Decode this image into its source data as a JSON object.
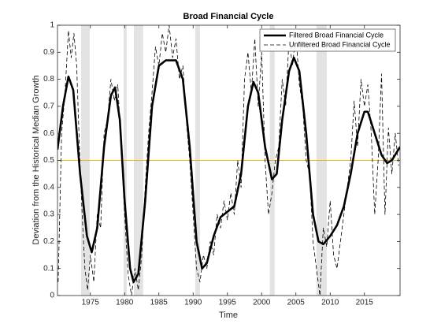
{
  "chart_data": {
    "type": "line",
    "title": "Broad Financial Cycle",
    "xlabel": "Time",
    "ylabel": "Deviation from the Historical Median Growth",
    "xlim": [
      1970.2,
      2020.2
    ],
    "ylim": [
      0,
      1
    ],
    "xticks": [
      1975,
      1980,
      1985,
      1990,
      1995,
      2000,
      2005,
      2010,
      2015
    ],
    "yticks": [
      0,
      0.1,
      0.2,
      0.3,
      0.4,
      0.5,
      0.6,
      0.7,
      0.8,
      0.9,
      1
    ],
    "legend": "top-right",
    "shaded_color": "#e3e3e3",
    "shaded": [
      [
        1973.65,
        1974.9
      ],
      [
        1979.85,
        1980.3
      ],
      [
        1981.35,
        1982.7
      ],
      [
        1990.3,
        1991.0
      ],
      [
        2001.2,
        2001.9
      ],
      [
        2008.0,
        2009.5
      ]
    ],
    "hline": {
      "value": 0.5,
      "color": "#edb120"
    },
    "series": [
      {
        "name": "Filtered Broad Financial Cycle",
        "color": "#000000",
        "style": "solid",
        "x": [
          1970.2,
          1971,
          1971.8,
          1972.5,
          1973.5,
          1974.5,
          1975.2,
          1976,
          1977,
          1978,
          1978.6,
          1979.3,
          1980,
          1980.8,
          1981.3,
          1982,
          1983,
          1984,
          1985,
          1986,
          1987.5,
          1988.5,
          1989.5,
          1990.5,
          1991.3,
          1992,
          1993,
          1994,
          1995,
          1996,
          1997,
          1998,
          1998.8,
          1999.5,
          2000.5,
          2001.5,
          2002.2,
          2003,
          2004,
          2004.7,
          2005.5,
          2006.5,
          2007.5,
          2008.3,
          2009,
          2010,
          2011,
          2012,
          2013,
          2014,
          2015,
          2015.5,
          2016.5,
          2017.5,
          2018.3,
          2019,
          2020.2
        ],
        "values": [
          0.54,
          0.7,
          0.81,
          0.76,
          0.45,
          0.22,
          0.16,
          0.25,
          0.55,
          0.74,
          0.77,
          0.65,
          0.35,
          0.1,
          0.05,
          0.08,
          0.35,
          0.7,
          0.85,
          0.87,
          0.87,
          0.8,
          0.55,
          0.2,
          0.1,
          0.12,
          0.22,
          0.29,
          0.31,
          0.33,
          0.45,
          0.7,
          0.79,
          0.75,
          0.55,
          0.43,
          0.45,
          0.65,
          0.83,
          0.88,
          0.83,
          0.6,
          0.3,
          0.2,
          0.19,
          0.22,
          0.26,
          0.33,
          0.45,
          0.6,
          0.68,
          0.68,
          0.6,
          0.52,
          0.49,
          0.5,
          0.55
        ]
      },
      {
        "name": "Unfiltered Broad Financial Cycle",
        "color": "#000000",
        "style": "dashed",
        "x": [
          1970.3,
          1970.8,
          1971.3,
          1971.8,
          1972.2,
          1972.6,
          1973,
          1973.4,
          1973.8,
          1974.2,
          1974.6,
          1975,
          1975.5,
          1976,
          1976.5,
          1977,
          1977.5,
          1978,
          1978.5,
          1979,
          1979.5,
          1980,
          1980.5,
          1981,
          1981.5,
          1982,
          1982.5,
          1983,
          1983.5,
          1984,
          1984.5,
          1985,
          1985.5,
          1986,
          1986.5,
          1987,
          1987.5,
          1988,
          1988.5,
          1989,
          1989.5,
          1990,
          1990.5,
          1991,
          1991.5,
          1992,
          1992.5,
          1993,
          1993.5,
          1994,
          1994.5,
          1995,
          1995.5,
          1996,
          1996.5,
          1997,
          1997.5,
          1998,
          1998.5,
          1999,
          1999.5,
          2000,
          2000.5,
          2001,
          2001.5,
          2002,
          2002.5,
          2003,
          2003.5,
          2004,
          2004.5,
          2005,
          2005.5,
          2006,
          2006.5,
          2007,
          2007.5,
          2008,
          2008.5,
          2009,
          2009.5,
          2010,
          2010.5,
          2011,
          2011.5,
          2012,
          2012.5,
          2013,
          2013.5,
          2014,
          2014.5,
          2015,
          2015.5,
          2016,
          2016.5,
          2017,
          2017.5,
          2018,
          2018.5,
          2019,
          2019.5,
          2020
        ],
        "values": [
          0.05,
          0.6,
          0.75,
          0.98,
          0.88,
          0.97,
          0.85,
          0.55,
          0.3,
          0.1,
          0.02,
          0.15,
          0.05,
          0.3,
          0.25,
          0.6,
          0.65,
          0.8,
          0.72,
          0.78,
          0.55,
          0.3,
          0.08,
          0.0,
          0.1,
          0.02,
          0.15,
          0.4,
          0.6,
          0.75,
          0.92,
          0.85,
          0.97,
          0.9,
          1.0,
          0.88,
          0.95,
          0.8,
          0.85,
          0.65,
          0.5,
          0.3,
          0.1,
          0.05,
          0.15,
          0.1,
          0.2,
          0.15,
          0.3,
          0.25,
          0.35,
          0.28,
          0.38,
          0.3,
          0.5,
          0.4,
          0.8,
          0.9,
          0.75,
          0.95,
          0.7,
          0.9,
          0.5,
          0.3,
          0.38,
          0.5,
          0.55,
          0.8,
          0.7,
          0.95,
          0.85,
          0.97,
          0.78,
          0.7,
          0.5,
          0.45,
          0.2,
          0.1,
          0.0,
          0.25,
          0.18,
          0.35,
          0.15,
          0.1,
          0.2,
          0.3,
          0.4,
          0.5,
          0.72,
          0.55,
          0.8,
          0.7,
          0.78,
          0.6,
          0.3,
          0.5,
          0.82,
          0.3,
          0.62,
          0.45,
          0.6,
          0.48
        ]
      }
    ]
  }
}
